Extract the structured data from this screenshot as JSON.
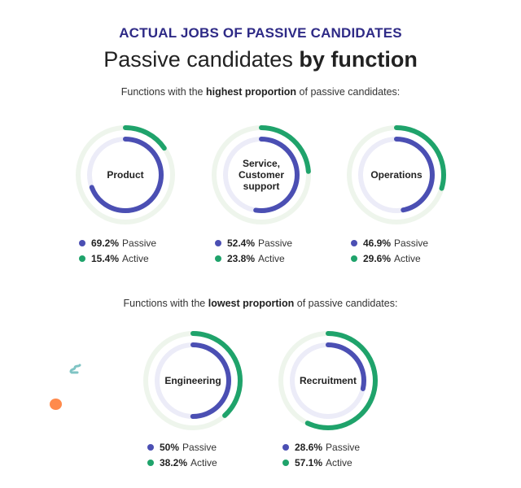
{
  "header": {
    "kicker": "ACTUAL JOBS OF PASSIVE CANDIDATES",
    "title_regular": "Passive candidates ",
    "title_bold": "by function"
  },
  "sections": [
    {
      "subtitle_pre": "Functions with the ",
      "subtitle_bold": "highest proportion",
      "subtitle_post": " of passive candidates:"
    },
    {
      "subtitle_pre": "Functions with the ",
      "subtitle_bold": "lowest proportion",
      "subtitle_post": " of passive candidates:"
    }
  ],
  "colors": {
    "passive": "#4b4fb3",
    "active": "#1fa36b",
    "passive_track": "#ececf8",
    "active_track": "#eef5ec",
    "kicker": "#2e2a86",
    "deco_orange": "#ff8a4c",
    "deco_teal": "#7fc4c4"
  },
  "legend_labels": {
    "passive": "Passive",
    "active": "Active"
  },
  "chart_data": {
    "type": "donut",
    "title": "Passive candidates by function",
    "subtitle": "ACTUAL JOBS OF PASSIVE CANDIDATES",
    "groups": [
      {
        "name": "Functions with the highest proportion of passive candidates",
        "categories": [
          "Product",
          "Service, Customer support",
          "Operations"
        ]
      },
      {
        "name": "Functions with the lowest proportion of passive candidates",
        "categories": [
          "Engineering",
          "Recruitment"
        ]
      }
    ],
    "categories": [
      "Product",
      "Service, Customer support",
      "Operations",
      "Engineering",
      "Recruitment"
    ],
    "series": [
      {
        "name": "Passive",
        "values": [
          69.2,
          52.4,
          46.9,
          50,
          28.6
        ],
        "labels": [
          "69.2%",
          "52.4%",
          "46.9%",
          "50%",
          "28.6%"
        ]
      },
      {
        "name": "Active",
        "values": [
          15.4,
          23.8,
          29.6,
          38.2,
          57.1
        ],
        "labels": [
          "15.4%",
          "23.8%",
          "29.6%",
          "38.2%",
          "57.1%"
        ]
      }
    ],
    "unit": "%",
    "legend_position": "below each ring"
  },
  "rings": [
    {
      "name_lines": [
        "Product"
      ],
      "passive": 69.2,
      "active": 15.4,
      "passive_label": "69.2%",
      "active_label": "15.4%"
    },
    {
      "name_lines": [
        "Service,",
        "Customer",
        "support"
      ],
      "passive": 52.4,
      "active": 23.8,
      "passive_label": "52.4%",
      "active_label": "23.8%"
    },
    {
      "name_lines": [
        "Operations"
      ],
      "passive": 46.9,
      "active": 29.6,
      "passive_label": "46.9%",
      "active_label": "29.6%"
    },
    {
      "name_lines": [
        "Engineering"
      ],
      "passive": 50,
      "active": 38.2,
      "passive_label": "50%",
      "active_label": "38.2%"
    },
    {
      "name_lines": [
        "Recruitment"
      ],
      "passive": 28.6,
      "active": 57.1,
      "passive_label": "28.6%",
      "active_label": "57.1%"
    }
  ]
}
